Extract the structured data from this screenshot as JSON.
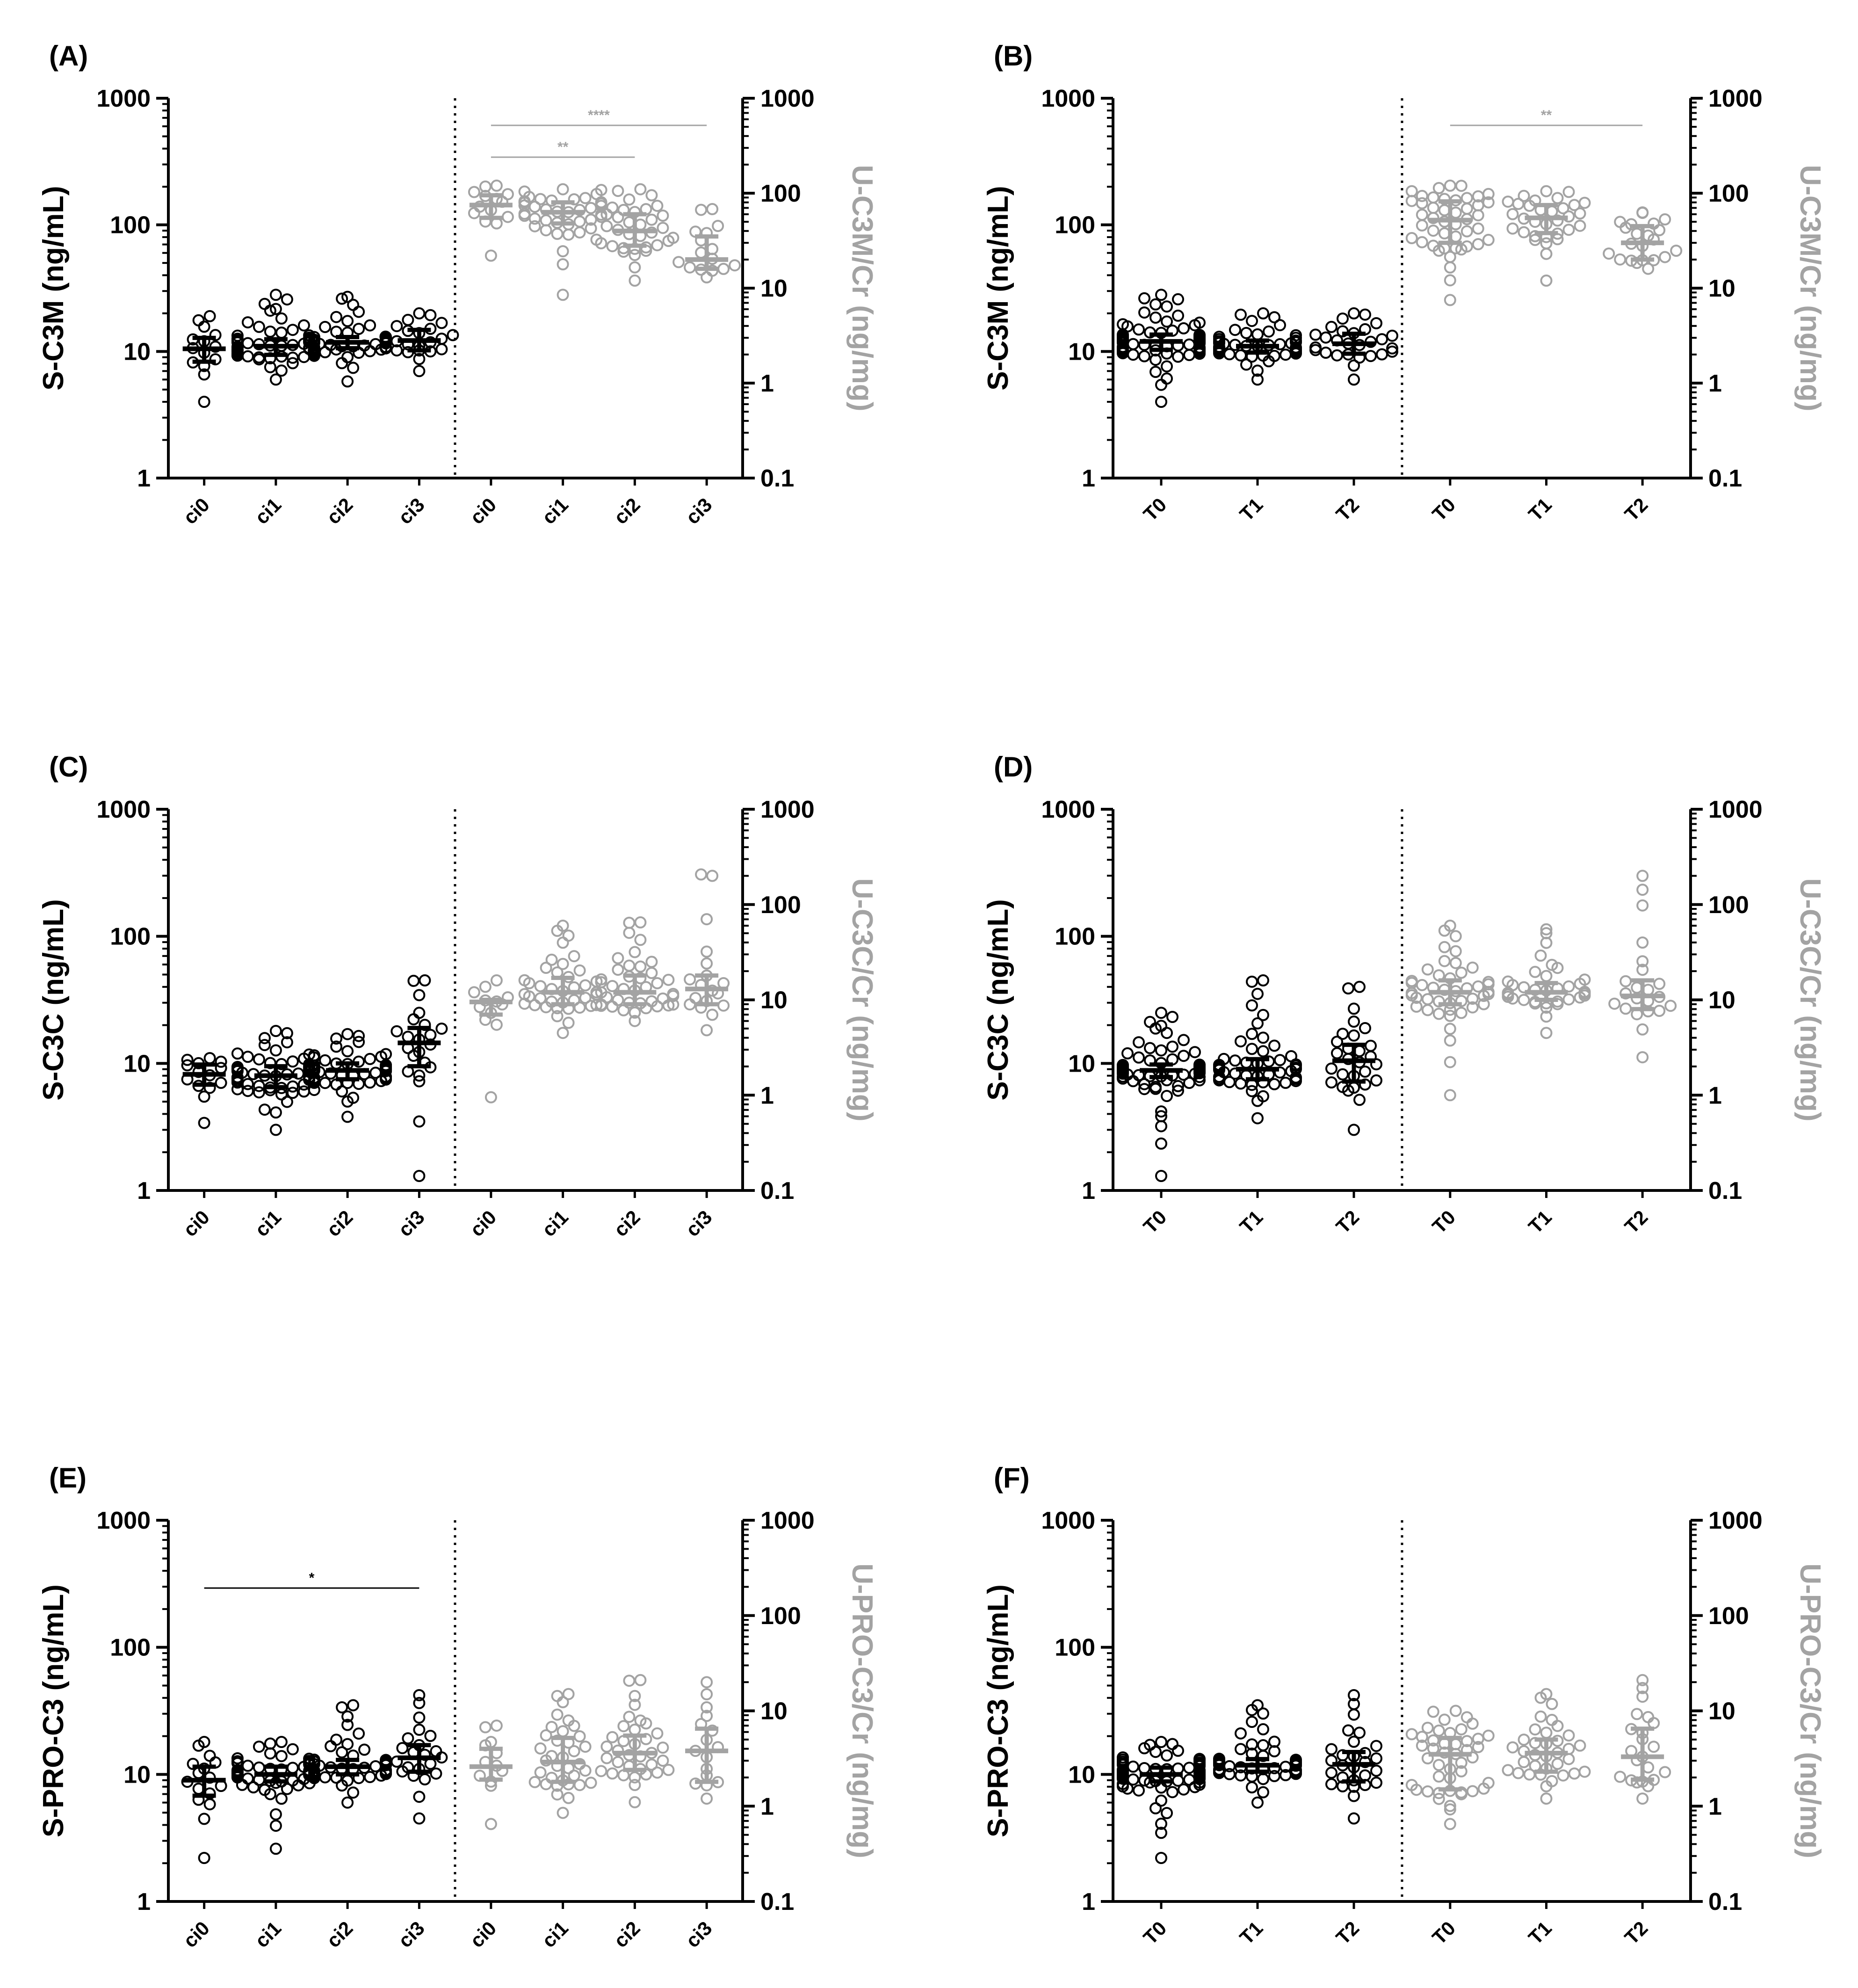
{
  "chart_data": [
    {
      "type": "scatter",
      "panel": "(A)",
      "seed": 11,
      "left_axis": {
        "label": "S-C3M (ng/mL)",
        "ticks": [
          "1",
          "10",
          "100",
          "1000"
        ],
        "range": [
          1,
          1000
        ],
        "scale": "log"
      },
      "right_axis": {
        "label": "U-C3M/Cr (ng/mg)",
        "ticks": [
          "0.1",
          "1",
          "10",
          "100",
          "1000"
        ],
        "range": [
          0.1,
          1000
        ],
        "scale": "log"
      },
      "left_series": [
        {
          "name": "ci0",
          "median": 10.5,
          "q1": 8.3,
          "q3": 12.8,
          "min": 4.0,
          "max": 19.0,
          "n": 14
        },
        {
          "name": "ci1",
          "median": 11.0,
          "q1": 9.4,
          "q3": 12.5,
          "min": 6.0,
          "max": 28.0,
          "n": 55
        },
        {
          "name": "ci2",
          "median": 11.8,
          "q1": 10.6,
          "q3": 13.0,
          "min": 5.8,
          "max": 27.0,
          "n": 45
        },
        {
          "name": "ci3",
          "median": 12.2,
          "q1": 10.2,
          "q3": 14.8,
          "min": 7.0,
          "max": 20.0,
          "n": 22
        }
      ],
      "right_series": [
        {
          "name": "ci0",
          "median": 75,
          "q1": 55,
          "q3": 95,
          "min": 22,
          "max": 120,
          "n": 14
        },
        {
          "name": "ci1",
          "median": 63,
          "q1": 48,
          "q3": 80,
          "min": 8.5,
          "max": 110,
          "n": 40
        },
        {
          "name": "ci2",
          "median": 40,
          "q1": 28,
          "q3": 60,
          "min": 12,
          "max": 110,
          "n": 35
        },
        {
          "name": "ci3",
          "median": 20,
          "q1": 16,
          "q3": 35,
          "min": 13,
          "max": 68,
          "n": 16
        }
      ],
      "significance": [
        {
          "from": "ci0",
          "to": "ci3",
          "side": "right",
          "label": "****",
          "level": 1
        },
        {
          "from": "ci0",
          "to": "ci2",
          "side": "right",
          "label": "**",
          "level": 0
        }
      ]
    },
    {
      "type": "scatter",
      "panel": "(B)",
      "seed": 23,
      "left_axis": {
        "label": "S-C3M (ng/mL)",
        "ticks": [
          "1",
          "10",
          "100",
          "1000"
        ],
        "range": [
          1,
          1000
        ],
        "scale": "log"
      },
      "right_axis": {
        "label": "U-C3M/Cr (ng/mg)",
        "ticks": [
          "0.1",
          "1",
          "10",
          "100",
          "1000"
        ],
        "range": [
          0.1,
          1000
        ],
        "scale": "log"
      },
      "left_series": [
        {
          "name": "T0",
          "median": 12.0,
          "q1": 10.3,
          "q3": 13.6,
          "min": 4.0,
          "max": 28.0,
          "n": 70
        },
        {
          "name": "T1",
          "median": 11.0,
          "q1": 9.8,
          "q3": 12.2,
          "min": 6.0,
          "max": 20.0,
          "n": 50
        },
        {
          "name": "T2",
          "median": 11.5,
          "q1": 9.6,
          "q3": 13.8,
          "min": 6.0,
          "max": 20.0,
          "n": 28
        }
      ],
      "right_series": [
        {
          "name": "T0",
          "median": 52,
          "q1": 30,
          "q3": 82,
          "min": 7.5,
          "max": 120,
          "n": 45
        },
        {
          "name": "T1",
          "median": 55,
          "q1": 38,
          "q3": 75,
          "min": 12,
          "max": 105,
          "n": 32
        },
        {
          "name": "T2",
          "median": 30,
          "q1": 20,
          "q3": 45,
          "min": 16,
          "max": 62,
          "n": 22
        }
      ],
      "significance": [
        {
          "from": "T0",
          "to": "T2",
          "side": "right",
          "label": "**",
          "level": 1
        }
      ]
    },
    {
      "type": "scatter",
      "panel": "(C)",
      "seed": 37,
      "left_axis": {
        "label": "S-C3C (ng/mL)",
        "ticks": [
          "1",
          "10",
          "100",
          "1000"
        ],
        "range": [
          1,
          1000
        ],
        "scale": "log"
      },
      "right_axis": {
        "label": "U-C3C/Cr (ng/mg)",
        "ticks": [
          "0.1",
          "1",
          "10",
          "100",
          "1000"
        ],
        "range": [
          0.1,
          1000
        ],
        "scale": "log"
      },
      "left_series": [
        {
          "name": "ci0",
          "median": 8.2,
          "q1": 6.8,
          "q3": 9.8,
          "min": 3.4,
          "max": 11.0,
          "n": 14
        },
        {
          "name": "ci1",
          "median": 8.0,
          "q1": 6.5,
          "q3": 9.5,
          "min": 3.0,
          "max": 18.0,
          "n": 55
        },
        {
          "name": "ci2",
          "median": 8.8,
          "q1": 7.5,
          "q3": 10.0,
          "min": 3.8,
          "max": 17.0,
          "n": 50
        },
        {
          "name": "ci3",
          "median": 14.5,
          "q1": 9.5,
          "q3": 19.0,
          "min": 1.3,
          "max": 45.0,
          "n": 22
        }
      ],
      "right_series": [
        {
          "name": "ci0",
          "median": 9.5,
          "q1": 7.0,
          "q3": 10.0,
          "min": 0.95,
          "max": 16.0,
          "n": 12
        },
        {
          "name": "ci1",
          "median": 12.0,
          "q1": 9.0,
          "q3": 17.0,
          "min": 4.5,
          "max": 60.0,
          "n": 40
        },
        {
          "name": "ci2",
          "median": 12.0,
          "q1": 9.0,
          "q3": 18.0,
          "min": 6.0,
          "max": 65.0,
          "n": 40
        },
        {
          "name": "ci3",
          "median": 13.0,
          "q1": 9.0,
          "q3": 18.0,
          "min": 4.8,
          "max": 200.0,
          "n": 18
        }
      ],
      "significance": []
    },
    {
      "type": "scatter",
      "panel": "(D)",
      "seed": 41,
      "left_axis": {
        "label": "S-C3C (ng/mL)",
        "ticks": [
          "1",
          "10",
          "100",
          "1000"
        ],
        "range": [
          1,
          1000
        ],
        "scale": "log"
      },
      "right_axis": {
        "label": "U-C3C/Cr (ng/mg)",
        "ticks": [
          "0.1",
          "1",
          "10",
          "100",
          "1000"
        ],
        "range": [
          0.1,
          1000
        ],
        "scale": "log"
      },
      "left_series": [
        {
          "name": "T0",
          "median": 8.8,
          "q1": 7.8,
          "q3": 9.8,
          "min": 1.3,
          "max": 25.0,
          "n": 70
        },
        {
          "name": "T1",
          "median": 9.0,
          "q1": 7.5,
          "q3": 10.8,
          "min": 3.7,
          "max": 45.0,
          "n": 50
        },
        {
          "name": "T2",
          "median": 10.5,
          "q1": 7.2,
          "q3": 14.0,
          "min": 3.0,
          "max": 40.0,
          "n": 28
        }
      ],
      "right_series": [
        {
          "name": "T0",
          "median": 12.0,
          "q1": 9.0,
          "q3": 16.0,
          "min": 1.0,
          "max": 60.0,
          "n": 45
        },
        {
          "name": "T1",
          "median": 12.0,
          "q1": 10.0,
          "q3": 15.0,
          "min": 4.5,
          "max": 55.0,
          "n": 35
        },
        {
          "name": "T2",
          "median": 11.0,
          "q1": 8.0,
          "q3": 16.0,
          "min": 2.5,
          "max": 200.0,
          "n": 22
        }
      ],
      "significance": []
    },
    {
      "type": "scatter",
      "panel": "(E)",
      "seed": 53,
      "left_axis": {
        "label": "S-PRO-C3 (ng/mL)",
        "ticks": [
          "1",
          "10",
          "100",
          "1000"
        ],
        "range": [
          1,
          1000
        ],
        "scale": "log"
      },
      "right_axis": {
        "label": "U-PRO-C3/Cr (ng/mg)",
        "ticks": [
          "0.1",
          "1",
          "10",
          "100",
          "1000"
        ],
        "range": [
          0.1,
          1000
        ],
        "scale": "log"
      },
      "left_series": [
        {
          "name": "ci0",
          "median": 9.0,
          "q1": 6.8,
          "q3": 11.5,
          "min": 2.2,
          "max": 18.0,
          "n": 16
        },
        {
          "name": "ci1",
          "median": 10.0,
          "q1": 8.8,
          "q3": 11.5,
          "min": 2.6,
          "max": 18.0,
          "n": 50
        },
        {
          "name": "ci2",
          "median": 11.5,
          "q1": 10.0,
          "q3": 13.0,
          "min": 6.0,
          "max": 35.0,
          "n": 45
        },
        {
          "name": "ci3",
          "median": 13.5,
          "q1": 10.5,
          "q3": 17.0,
          "min": 4.5,
          "max": 42.0,
          "n": 22
        }
      ],
      "right_series": [
        {
          "name": "ci0",
          "median": 2.6,
          "q1": 1.9,
          "q3": 4.0,
          "min": 0.65,
          "max": 7.0,
          "n": 12
        },
        {
          "name": "ci1",
          "median": 2.9,
          "q1": 1.8,
          "q3": 5.2,
          "min": 0.85,
          "max": 15.0,
          "n": 35
        },
        {
          "name": "ci2",
          "median": 3.6,
          "q1": 2.4,
          "q3": 5.5,
          "min": 1.1,
          "max": 21.0,
          "n": 35
        },
        {
          "name": "ci3",
          "median": 3.8,
          "q1": 1.8,
          "q3": 6.5,
          "min": 1.2,
          "max": 20.0,
          "n": 16
        }
      ],
      "significance": [
        {
          "from": "ci0",
          "to": "ci3",
          "side": "left",
          "label": "*",
          "level": 0
        }
      ]
    },
    {
      "type": "scatter",
      "panel": "(F)",
      "seed": 67,
      "left_axis": {
        "label": "S-PRO-C3 (ng/mL)",
        "ticks": [
          "1",
          "10",
          "100",
          "1000"
        ],
        "range": [
          1,
          1000
        ],
        "scale": "log"
      },
      "right_axis": {
        "label": "U-PRO-C3/Cr (ng/mg)",
        "ticks": [
          "0.1",
          "1",
          "10",
          "100",
          "1000"
        ],
        "range": [
          0.1,
          1000
        ],
        "scale": "log"
      },
      "left_series": [
        {
          "name": "T0",
          "median": 10.0,
          "q1": 8.8,
          "q3": 11.3,
          "min": 2.2,
          "max": 18.0,
          "n": 70
        },
        {
          "name": "T1",
          "median": 11.8,
          "q1": 10.5,
          "q3": 13.2,
          "min": 6.0,
          "max": 35.0,
          "n": 50
        },
        {
          "name": "T2",
          "median": 12.0,
          "q1": 8.8,
          "q3": 15.0,
          "min": 4.5,
          "max": 42.0,
          "n": 28
        }
      ],
      "right_series": [
        {
          "name": "T0",
          "median": 3.5,
          "q1": 1.5,
          "q3": 5.2,
          "min": 0.65,
          "max": 10.0,
          "n": 45
        },
        {
          "name": "T1",
          "median": 3.6,
          "q1": 2.3,
          "q3": 5.0,
          "min": 1.2,
          "max": 15.0,
          "n": 35
        },
        {
          "name": "T2",
          "median": 3.3,
          "q1": 1.9,
          "q3": 6.5,
          "min": 1.2,
          "max": 21.0,
          "n": 22
        }
      ],
      "significance": []
    }
  ],
  "colors": {
    "serum": "#000000",
    "urine": "#a3a3a3"
  }
}
